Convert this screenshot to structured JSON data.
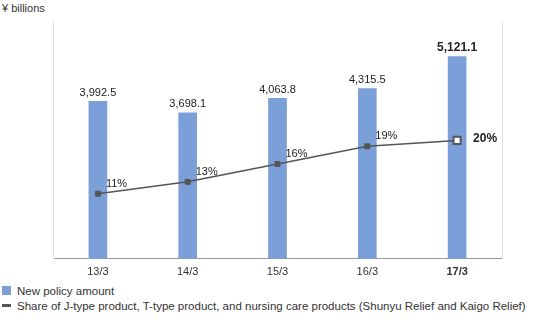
{
  "chart_data": {
    "type": "bar",
    "ylabel": "¥ billions",
    "categories": [
      "13/3",
      "14/3",
      "15/3",
      "16/3",
      "17/3"
    ],
    "series": [
      {
        "name": "New policy amount",
        "type": "bar",
        "color": "#7b9fd8",
        "values": [
          3992.5,
          3698.1,
          4063.8,
          4315.5,
          5121.1
        ],
        "value_labels": [
          "3,992.5",
          "3,698.1",
          "4,063.8",
          "4,315.5",
          "5,121.1"
        ]
      },
      {
        "name": "Share of J-type product, T-type product, and nursing care products (Shunyu Relief and Kaigo Relief)",
        "type": "line",
        "axis": "y2",
        "color": "#555555",
        "marker": "square",
        "values": [
          11,
          13,
          16,
          19,
          20
        ],
        "value_labels": [
          "11%",
          "13%",
          "16%",
          "19%",
          "20%"
        ]
      }
    ],
    "ylim": [
      0,
      6000
    ],
    "y2lim": [
      0,
      40
    ],
    "data_labels": true,
    "tick_labels": "x",
    "grid": false,
    "legend": "bottom"
  }
}
